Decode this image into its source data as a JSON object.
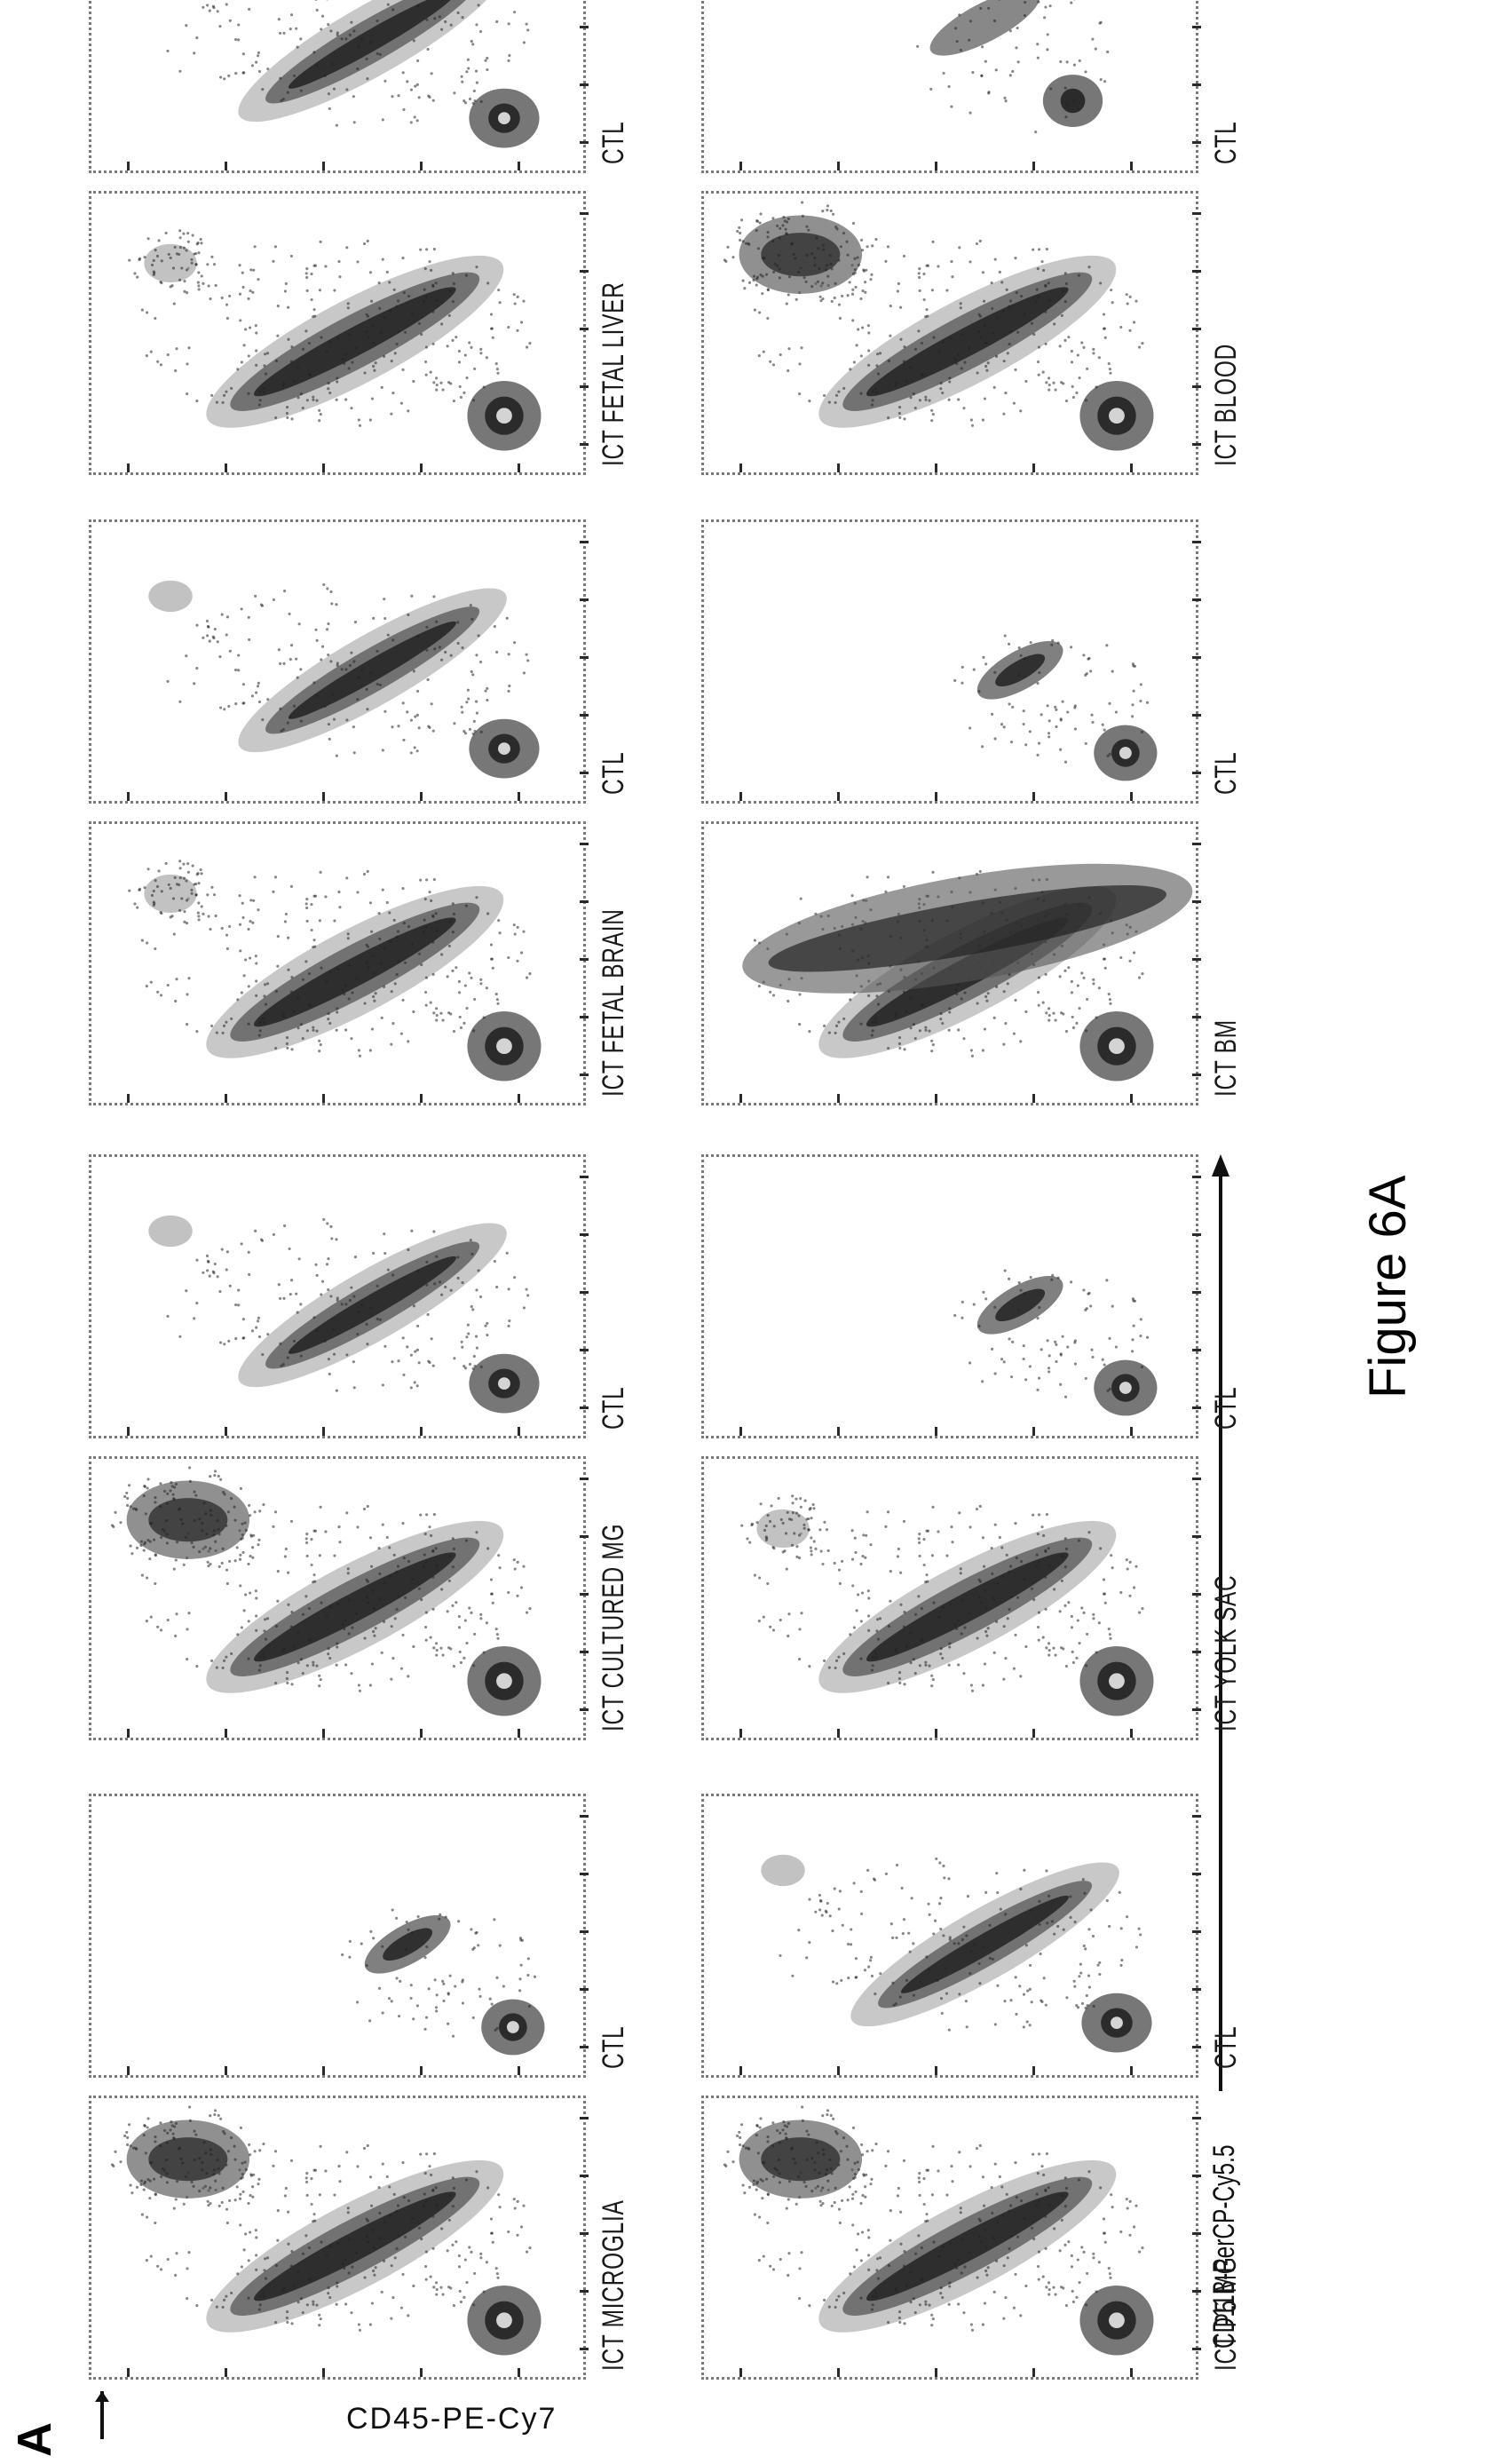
{
  "figure": {
    "panel_letter": "A",
    "caption": "Figure 6A",
    "x_axis_label": "CD11B-PerCP-Cy5.5",
    "y_axis_label": "CD45-PE-Cy7"
  },
  "rows": [
    {
      "panels": [
        {
          "label": "ICT MICROGLIA",
          "shape": "ict-dense"
        },
        {
          "label": "CTL",
          "shape": "ctl-two-blobs"
        },
        {
          "label": "ICT CULTURED MG",
          "shape": "ict-dense"
        },
        {
          "label": "CTL",
          "shape": "ctl-diag"
        },
        {
          "label": "ICT FETAL BRAIN",
          "shape": "ict-diag"
        },
        {
          "label": "CTL",
          "shape": "ctl-diag"
        },
        {
          "label": "ICT FETAL LIVER",
          "shape": "ict-diag"
        },
        {
          "label": "CTL",
          "shape": "ctl-diag"
        }
      ]
    },
    {
      "panels": [
        {
          "label": "ICT P5 MG",
          "shape": "ict-dense"
        },
        {
          "label": "CTL",
          "shape": "ctl-diag"
        },
        {
          "label": "ICT YOLK SAC",
          "shape": "ict-diag"
        },
        {
          "label": "CTL",
          "shape": "ctl-two-blobs"
        },
        {
          "label": "ICT BM",
          "shape": "ict-wide"
        },
        {
          "label": "CTL",
          "shape": "ctl-two-blobs"
        },
        {
          "label": "ICT BLOOD",
          "shape": "ict-dense"
        },
        {
          "label": "CTL",
          "shape": "ctl-small"
        }
      ]
    }
  ],
  "colors": {
    "ink": "#1a1a1a",
    "panel_border": "#7a7a7a",
    "density_dark": "#222222",
    "density_mid": "#555555",
    "density_light": "#9a9a9a"
  }
}
